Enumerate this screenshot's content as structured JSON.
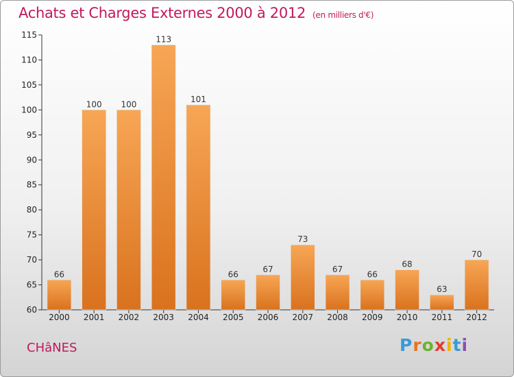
{
  "header": {
    "title": "Achats et Charges Externes 2000 à 2012",
    "unit": "(en milliers d'€)"
  },
  "footer": {
    "commune": "CHâNES",
    "logo": [
      "P",
      "r",
      "o",
      "x",
      "i",
      "t",
      "i"
    ],
    "logo_colors": [
      "#3a9ad9",
      "#e8731b",
      "#6ab42d",
      "#e33b2e",
      "#f0b400",
      "#3a9ad9",
      "#8a4fb0"
    ]
  },
  "chart_data": {
    "type": "bar",
    "title": "Achats et Charges Externes 2000 à 2012",
    "categories": [
      "2000",
      "2001",
      "2002",
      "2003",
      "2004",
      "2005",
      "2006",
      "2007",
      "2008",
      "2009",
      "2010",
      "2011",
      "2012"
    ],
    "values": [
      66,
      100,
      100,
      113,
      101,
      66,
      67,
      73,
      67,
      66,
      68,
      63,
      70
    ],
    "ylim": [
      60,
      115
    ],
    "yticks": [
      60,
      65,
      70,
      75,
      80,
      85,
      90,
      95,
      100,
      105,
      110,
      115
    ],
    "grid": false,
    "bar_color": "#f0943a"
  }
}
